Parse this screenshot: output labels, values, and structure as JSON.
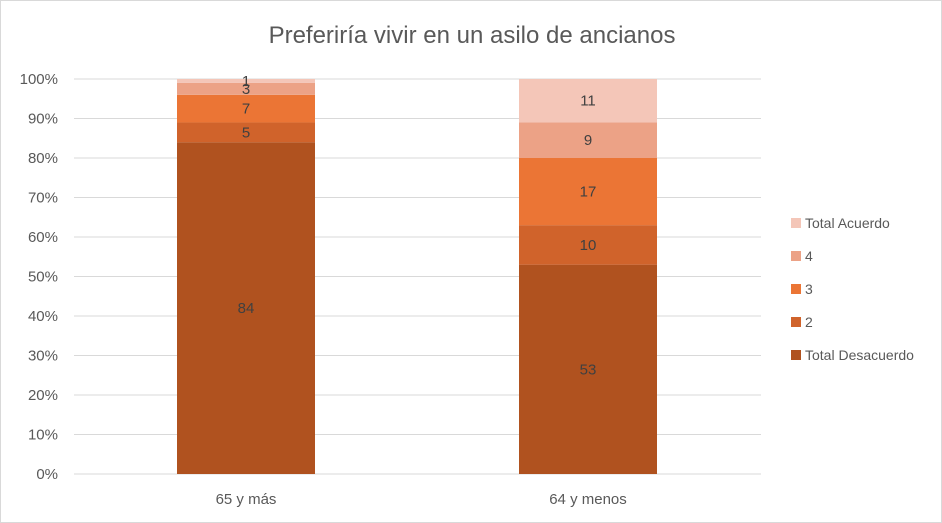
{
  "chart_data": {
    "type": "bar",
    "stacked": "percent",
    "title": "Preferiría vivir en un asilo de ancianos",
    "categories": [
      "65 y más",
      "64 y menos"
    ],
    "series": [
      {
        "name": "Total Desacuerdo",
        "values": [
          84,
          53
        ],
        "color": "#B0521F"
      },
      {
        "name": "2",
        "values": [
          5,
          10
        ],
        "color": "#D0632B"
      },
      {
        "name": "3",
        "values": [
          7,
          17
        ],
        "color": "#EB7535"
      },
      {
        "name": "4",
        "values": [
          3,
          9
        ],
        "color": "#ECA286"
      },
      {
        "name": "Total Acuerdo",
        "values": [
          1,
          11
        ],
        "color": "#F4C6B8"
      }
    ],
    "y_ticks": [
      "0%",
      "10%",
      "20%",
      "30%",
      "40%",
      "50%",
      "60%",
      "70%",
      "80%",
      "90%",
      "100%"
    ],
    "ylim": [
      0,
      100
    ],
    "grid": true,
    "legend_position": "right"
  }
}
